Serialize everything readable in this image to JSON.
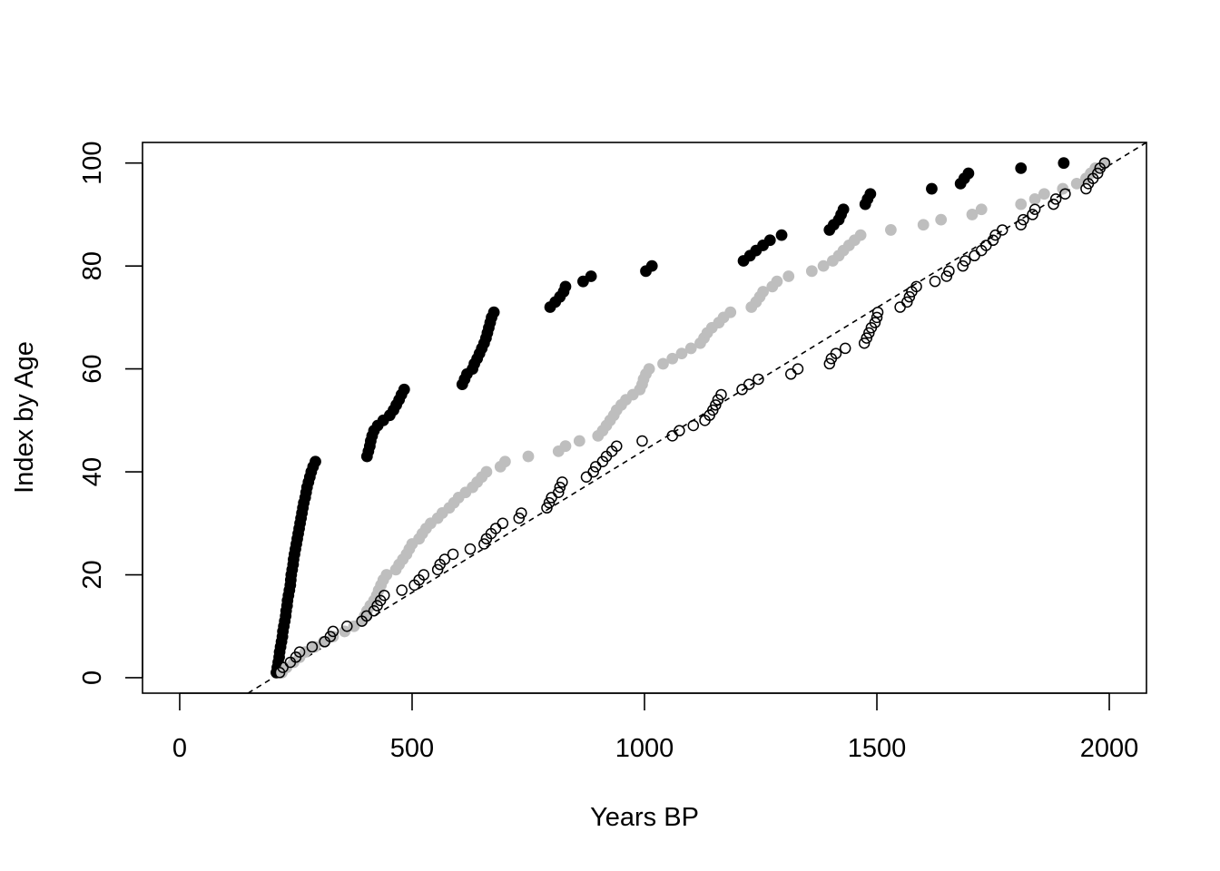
{
  "chart_data": {
    "type": "scatter",
    "title": "",
    "xlabel": "Years BP",
    "ylabel": "Index by Age",
    "xlim": [
      -80,
      2080
    ],
    "ylim": [
      -3,
      104
    ],
    "xticks": [
      0,
      500,
      1000,
      1500,
      2000
    ],
    "yticks": [
      0,
      20,
      40,
      60,
      80,
      100
    ],
    "grid": false,
    "legend": "none",
    "series": [
      {
        "marker": "filled-circle",
        "color": "#000000",
        "points": [
          [
            208,
            1
          ],
          [
            210,
            2
          ],
          [
            212,
            3
          ],
          [
            214,
            4
          ],
          [
            215,
            5
          ],
          [
            217,
            6
          ],
          [
            219,
            7
          ],
          [
            221,
            8
          ],
          [
            222,
            9
          ],
          [
            224,
            10
          ],
          [
            226,
            11
          ],
          [
            228,
            12
          ],
          [
            229,
            13
          ],
          [
            231,
            14
          ],
          [
            232,
            15
          ],
          [
            234,
            16
          ],
          [
            236,
            17
          ],
          [
            238,
            18
          ],
          [
            239,
            19
          ],
          [
            240,
            20
          ],
          [
            242,
            21
          ],
          [
            244,
            22
          ],
          [
            245,
            23
          ],
          [
            247,
            24
          ],
          [
            249,
            25
          ],
          [
            251,
            26
          ],
          [
            253,
            27
          ],
          [
            255,
            28
          ],
          [
            257,
            29
          ],
          [
            259,
            30
          ],
          [
            261,
            31
          ],
          [
            263,
            32
          ],
          [
            265,
            33
          ],
          [
            267,
            34
          ],
          [
            270,
            35
          ],
          [
            272,
            36
          ],
          [
            274,
            37
          ],
          [
            277,
            38
          ],
          [
            280,
            39
          ],
          [
            283,
            40
          ],
          [
            287,
            41
          ],
          [
            292,
            42
          ],
          [
            403,
            43
          ],
          [
            406,
            44
          ],
          [
            409,
            45
          ],
          [
            411,
            46
          ],
          [
            414,
            47
          ],
          [
            418,
            48
          ],
          [
            426,
            49
          ],
          [
            438,
            50
          ],
          [
            452,
            51
          ],
          [
            460,
            52
          ],
          [
            466,
            53
          ],
          [
            472,
            54
          ],
          [
            477,
            55
          ],
          [
            483,
            56
          ],
          [
            608,
            57
          ],
          [
            613,
            58
          ],
          [
            618,
            59
          ],
          [
            630,
            60
          ],
          [
            634,
            61
          ],
          [
            640,
            62
          ],
          [
            645,
            63
          ],
          [
            650,
            64
          ],
          [
            655,
            65
          ],
          [
            659,
            66
          ],
          [
            662,
            67
          ],
          [
            665,
            68
          ],
          [
            668,
            69
          ],
          [
            671,
            70
          ],
          [
            676,
            71
          ],
          [
            797,
            72
          ],
          [
            808,
            73
          ],
          [
            818,
            74
          ],
          [
            826,
            75
          ],
          [
            830,
            76
          ],
          [
            868,
            77
          ],
          [
            885,
            78
          ],
          [
            1003,
            79
          ],
          [
            1016,
            80
          ],
          [
            1213,
            81
          ],
          [
            1227,
            82
          ],
          [
            1240,
            83
          ],
          [
            1255,
            84
          ],
          [
            1270,
            85
          ],
          [
            1295,
            86
          ],
          [
            1398,
            87
          ],
          [
            1407,
            88
          ],
          [
            1418,
            89
          ],
          [
            1423,
            90
          ],
          [
            1428,
            91
          ],
          [
            1475,
            92
          ],
          [
            1480,
            93
          ],
          [
            1486,
            94
          ],
          [
            1618,
            95
          ],
          [
            1680,
            96
          ],
          [
            1688,
            97
          ],
          [
            1697,
            98
          ],
          [
            1810,
            99
          ],
          [
            1902,
            100
          ]
        ]
      },
      {
        "marker": "filled-circle",
        "color": "#bebebe",
        "points": [
          [
            220,
            1
          ],
          [
            230,
            2
          ],
          [
            245,
            3
          ],
          [
            258,
            4
          ],
          [
            270,
            5
          ],
          [
            290,
            6
          ],
          [
            310,
            7
          ],
          [
            330,
            8
          ],
          [
            355,
            9
          ],
          [
            375,
            10
          ],
          [
            392,
            11
          ],
          [
            398,
            12
          ],
          [
            403,
            13
          ],
          [
            410,
            14
          ],
          [
            418,
            15
          ],
          [
            424,
            16
          ],
          [
            428,
            17
          ],
          [
            433,
            18
          ],
          [
            438,
            19
          ],
          [
            445,
            20
          ],
          [
            465,
            21
          ],
          [
            472,
            22
          ],
          [
            480,
            23
          ],
          [
            488,
            24
          ],
          [
            494,
            25
          ],
          [
            500,
            26
          ],
          [
            515,
            27
          ],
          [
            522,
            28
          ],
          [
            530,
            29
          ],
          [
            540,
            30
          ],
          [
            555,
            31
          ],
          [
            565,
            32
          ],
          [
            580,
            33
          ],
          [
            590,
            34
          ],
          [
            600,
            35
          ],
          [
            615,
            36
          ],
          [
            630,
            37
          ],
          [
            640,
            38
          ],
          [
            650,
            39
          ],
          [
            660,
            40
          ],
          [
            690,
            41
          ],
          [
            700,
            42
          ],
          [
            750,
            43
          ],
          [
            815,
            44
          ],
          [
            830,
            45
          ],
          [
            860,
            46
          ],
          [
            900,
            47
          ],
          [
            910,
            48
          ],
          [
            918,
            49
          ],
          [
            926,
            50
          ],
          [
            934,
            51
          ],
          [
            940,
            52
          ],
          [
            950,
            53
          ],
          [
            960,
            54
          ],
          [
            975,
            55
          ],
          [
            990,
            56
          ],
          [
            995,
            57
          ],
          [
            998,
            58
          ],
          [
            1003,
            59
          ],
          [
            1010,
            60
          ],
          [
            1040,
            61
          ],
          [
            1060,
            62
          ],
          [
            1080,
            63
          ],
          [
            1100,
            64
          ],
          [
            1120,
            65
          ],
          [
            1128,
            66
          ],
          [
            1135,
            67
          ],
          [
            1145,
            68
          ],
          [
            1160,
            69
          ],
          [
            1170,
            70
          ],
          [
            1185,
            71
          ],
          [
            1230,
            72
          ],
          [
            1240,
            73
          ],
          [
            1248,
            74
          ],
          [
            1255,
            75
          ],
          [
            1275,
            76
          ],
          [
            1285,
            77
          ],
          [
            1310,
            78
          ],
          [
            1360,
            79
          ],
          [
            1385,
            80
          ],
          [
            1405,
            81
          ],
          [
            1418,
            82
          ],
          [
            1428,
            83
          ],
          [
            1440,
            84
          ],
          [
            1452,
            85
          ],
          [
            1465,
            86
          ],
          [
            1530,
            87
          ],
          [
            1600,
            88
          ],
          [
            1638,
            89
          ],
          [
            1705,
            90
          ],
          [
            1725,
            91
          ],
          [
            1810,
            92
          ],
          [
            1840,
            93
          ],
          [
            1860,
            94
          ],
          [
            1900,
            95
          ],
          [
            1930,
            96
          ],
          [
            1950,
            97
          ],
          [
            1960,
            98
          ],
          [
            1970,
            99
          ],
          [
            1990,
            100
          ]
        ]
      },
      {
        "marker": "open-circle",
        "color": "#000000",
        "points": [
          [
            215,
            1
          ],
          [
            222,
            2
          ],
          [
            238,
            3
          ],
          [
            250,
            4
          ],
          [
            258,
            5
          ],
          [
            285,
            6
          ],
          [
            312,
            7
          ],
          [
            324,
            8
          ],
          [
            330,
            9
          ],
          [
            360,
            10
          ],
          [
            392,
            11
          ],
          [
            402,
            12
          ],
          [
            418,
            13
          ],
          [
            425,
            14
          ],
          [
            432,
            15
          ],
          [
            440,
            16
          ],
          [
            478,
            17
          ],
          [
            505,
            18
          ],
          [
            515,
            19
          ],
          [
            525,
            20
          ],
          [
            555,
            21
          ],
          [
            560,
            22
          ],
          [
            570,
            23
          ],
          [
            588,
            24
          ],
          [
            625,
            25
          ],
          [
            655,
            26
          ],
          [
            660,
            27
          ],
          [
            670,
            28
          ],
          [
            680,
            29
          ],
          [
            695,
            30
          ],
          [
            730,
            31
          ],
          [
            735,
            32
          ],
          [
            790,
            33
          ],
          [
            795,
            34
          ],
          [
            800,
            35
          ],
          [
            815,
            36
          ],
          [
            818,
            37
          ],
          [
            823,
            38
          ],
          [
            875,
            39
          ],
          [
            890,
            40
          ],
          [
            895,
            41
          ],
          [
            910,
            42
          ],
          [
            918,
            43
          ],
          [
            930,
            44
          ],
          [
            940,
            45
          ],
          [
            995,
            46
          ],
          [
            1060,
            47
          ],
          [
            1075,
            48
          ],
          [
            1105,
            49
          ],
          [
            1130,
            50
          ],
          [
            1140,
            51
          ],
          [
            1147,
            52
          ],
          [
            1153,
            53
          ],
          [
            1158,
            54
          ],
          [
            1165,
            55
          ],
          [
            1210,
            56
          ],
          [
            1225,
            57
          ],
          [
            1245,
            58
          ],
          [
            1315,
            59
          ],
          [
            1330,
            60
          ],
          [
            1398,
            61
          ],
          [
            1402,
            62
          ],
          [
            1412,
            63
          ],
          [
            1432,
            64
          ],
          [
            1473,
            65
          ],
          [
            1478,
            66
          ],
          [
            1483,
            67
          ],
          [
            1488,
            68
          ],
          [
            1496,
            69
          ],
          [
            1500,
            70
          ],
          [
            1502,
            71
          ],
          [
            1550,
            72
          ],
          [
            1565,
            73
          ],
          [
            1570,
            74
          ],
          [
            1575,
            75
          ],
          [
            1585,
            76
          ],
          [
            1625,
            77
          ],
          [
            1650,
            78
          ],
          [
            1655,
            79
          ],
          [
            1685,
            80
          ],
          [
            1690,
            81
          ],
          [
            1710,
            82
          ],
          [
            1725,
            83
          ],
          [
            1735,
            84
          ],
          [
            1750,
            85
          ],
          [
            1755,
            86
          ],
          [
            1770,
            87
          ],
          [
            1810,
            88
          ],
          [
            1815,
            89
          ],
          [
            1835,
            90
          ],
          [
            1840,
            91
          ],
          [
            1880,
            92
          ],
          [
            1885,
            93
          ],
          [
            1905,
            94
          ],
          [
            1950,
            95
          ],
          [
            1955,
            96
          ],
          [
            1965,
            97
          ],
          [
            1975,
            98
          ],
          [
            1980,
            99
          ],
          [
            1990,
            100
          ]
        ]
      }
    ],
    "reference_line": {
      "style": "dashed",
      "color": "#000000",
      "points": [
        [
          147,
          -3
        ],
        [
          2080,
          104
        ]
      ]
    }
  }
}
